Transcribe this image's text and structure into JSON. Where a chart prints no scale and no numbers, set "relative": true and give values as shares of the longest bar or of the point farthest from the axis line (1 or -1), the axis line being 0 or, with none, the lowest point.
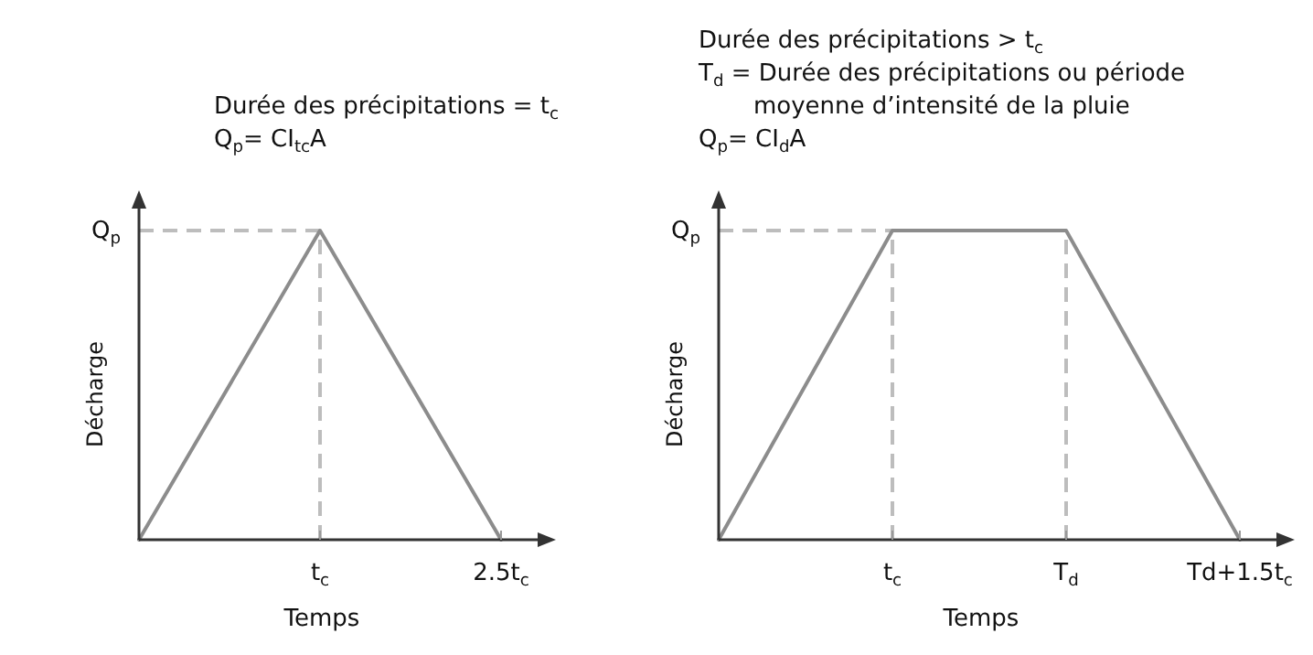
{
  "chart_data": [
    {
      "type": "line",
      "relative": true,
      "xlabel": "Temps",
      "ylabel": "Décharge",
      "categories": [
        null,
        "t$_{c}$",
        "2.5t$_{c}$"
      ],
      "series": [
        {
          "color": "#8c8c8c",
          "values": [
            0,
            1,
            0
          ]
        }
      ],
      "ref_lines": [
        {
          "axis": "y",
          "value": 1,
          "label": "Q$_{p}$",
          "color": "#bdbdbd",
          "line_style": "dashed"
        },
        {
          "axis": "x",
          "value": "t$_{c}$",
          "color": "#bdbdbd",
          "line_style": "dashed"
        }
      ],
      "annotations": [
        "Durée des précipitations = t$_{c}$",
        "Q$_{p}$= CI$_{tc}$A"
      ]
    },
    {
      "type": "line",
      "relative": true,
      "xlabel": "Temps",
      "ylabel": "Décharge",
      "categories": [
        null,
        "t$_{c}$",
        "T$_{d}$",
        "Td+1.5t$_{c}$"
      ],
      "series": [
        {
          "color": "#8c8c8c",
          "values": [
            0,
            1,
            1,
            0
          ]
        }
      ],
      "ref_lines": [
        {
          "axis": "y",
          "value": 1,
          "label": "Q$_{p}$",
          "color": "#bdbdbd",
          "line_style": "dashed"
        },
        {
          "axis": "x",
          "value": "t$_{c}$",
          "color": "#bdbdbd",
          "line_style": "dashed"
        },
        {
          "axis": "x",
          "value": "T$_{d}$",
          "color": "#bdbdbd",
          "line_style": "dashed"
        }
      ],
      "annotations": [
        "Durée des précipitations > t$_{c}$",
        "T$_{d}$ = Durée des précipitations ou période moyenne d’intensité de la pluie",
        "Q$_{p}$= CI$_{d}$A"
      ]
    }
  ]
}
